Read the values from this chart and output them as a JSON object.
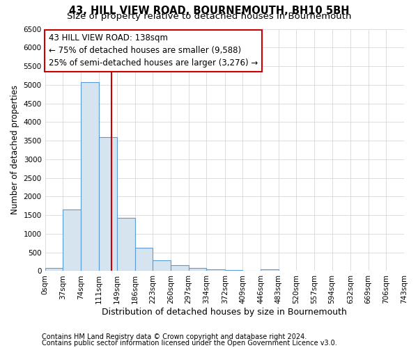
{
  "title": "43, HILL VIEW ROAD, BOURNEMOUTH, BH10 5BH",
  "subtitle": "Size of property relative to detached houses in Bournemouth",
  "xlabel": "Distribution of detached houses by size in Bournemouth",
  "ylabel": "Number of detached properties",
  "footer1": "Contains HM Land Registry data © Crown copyright and database right 2024.",
  "footer2": "Contains public sector information licensed under the Open Government Licence v3.0.",
  "bin_edges": [
    0,
    37,
    74,
    111,
    149,
    186,
    223,
    260,
    297,
    334,
    372,
    409,
    446,
    483,
    520,
    557,
    594,
    632,
    669,
    706,
    743
  ],
  "bar_heights": [
    75,
    1650,
    5075,
    3600,
    1420,
    620,
    295,
    150,
    75,
    40,
    20,
    10,
    55,
    0,
    0,
    0,
    0,
    0,
    0,
    0
  ],
  "bar_color": "#d6e4f0",
  "bar_edge_color": "#5b9bd5",
  "property_line_x": 138,
  "property_line_color": "#cc0000",
  "annotation_line1": "43 HILL VIEW ROAD: 138sqm",
  "annotation_line2": "← 75% of detached houses are smaller (9,588)",
  "annotation_line3": "25% of semi-detached houses are larger (3,276) →",
  "annotation_box_color": "#ffffff",
  "annotation_border_color": "#cc0000",
  "ylim": [
    0,
    6500
  ],
  "yticks": [
    0,
    500,
    1000,
    1500,
    2000,
    2500,
    3000,
    3500,
    4000,
    4500,
    5000,
    5500,
    6000,
    6500
  ],
  "title_fontsize": 10.5,
  "subtitle_fontsize": 9.5,
  "xlabel_fontsize": 9,
  "ylabel_fontsize": 8.5,
  "tick_fontsize": 7.5,
  "annotation_fontsize": 8.5,
  "footer_fontsize": 7
}
